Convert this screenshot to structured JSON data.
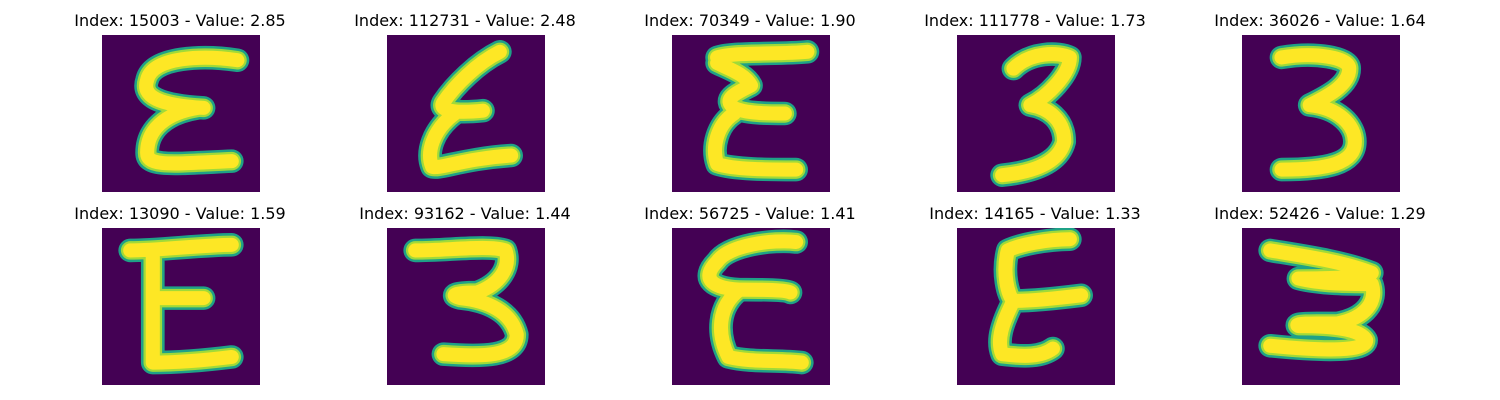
{
  "colors": {
    "background": "#440154",
    "stroke_core": "#fde725",
    "stroke_mid": "#a0da39",
    "stroke_edge": "#1fa187"
  },
  "panels": [
    {
      "title": "Index: 15003 - Value: 2.85",
      "glyph": "epsilon"
    },
    {
      "title": "Index: 112731 - Value: 2.48",
      "glyph": "epsilon"
    },
    {
      "title": "Index: 70349 - Value: 1.90",
      "glyph": "epsilon"
    },
    {
      "title": "Index: 111778 - Value: 1.73",
      "glyph": "three"
    },
    {
      "title": "Index: 36026 - Value: 1.64",
      "glyph": "three"
    },
    {
      "title": "Index: 13090 - Value: 1.59",
      "glyph": "epsilon"
    },
    {
      "title": "Index: 93162 - Value: 1.44",
      "glyph": "three"
    },
    {
      "title": "Index: 56725 - Value: 1.41",
      "glyph": "epsilon"
    },
    {
      "title": "Index: 14165 - Value: 1.33",
      "glyph": "epsilon"
    },
    {
      "title": "Index: 52426 - Value: 1.29",
      "glyph": "three"
    }
  ]
}
